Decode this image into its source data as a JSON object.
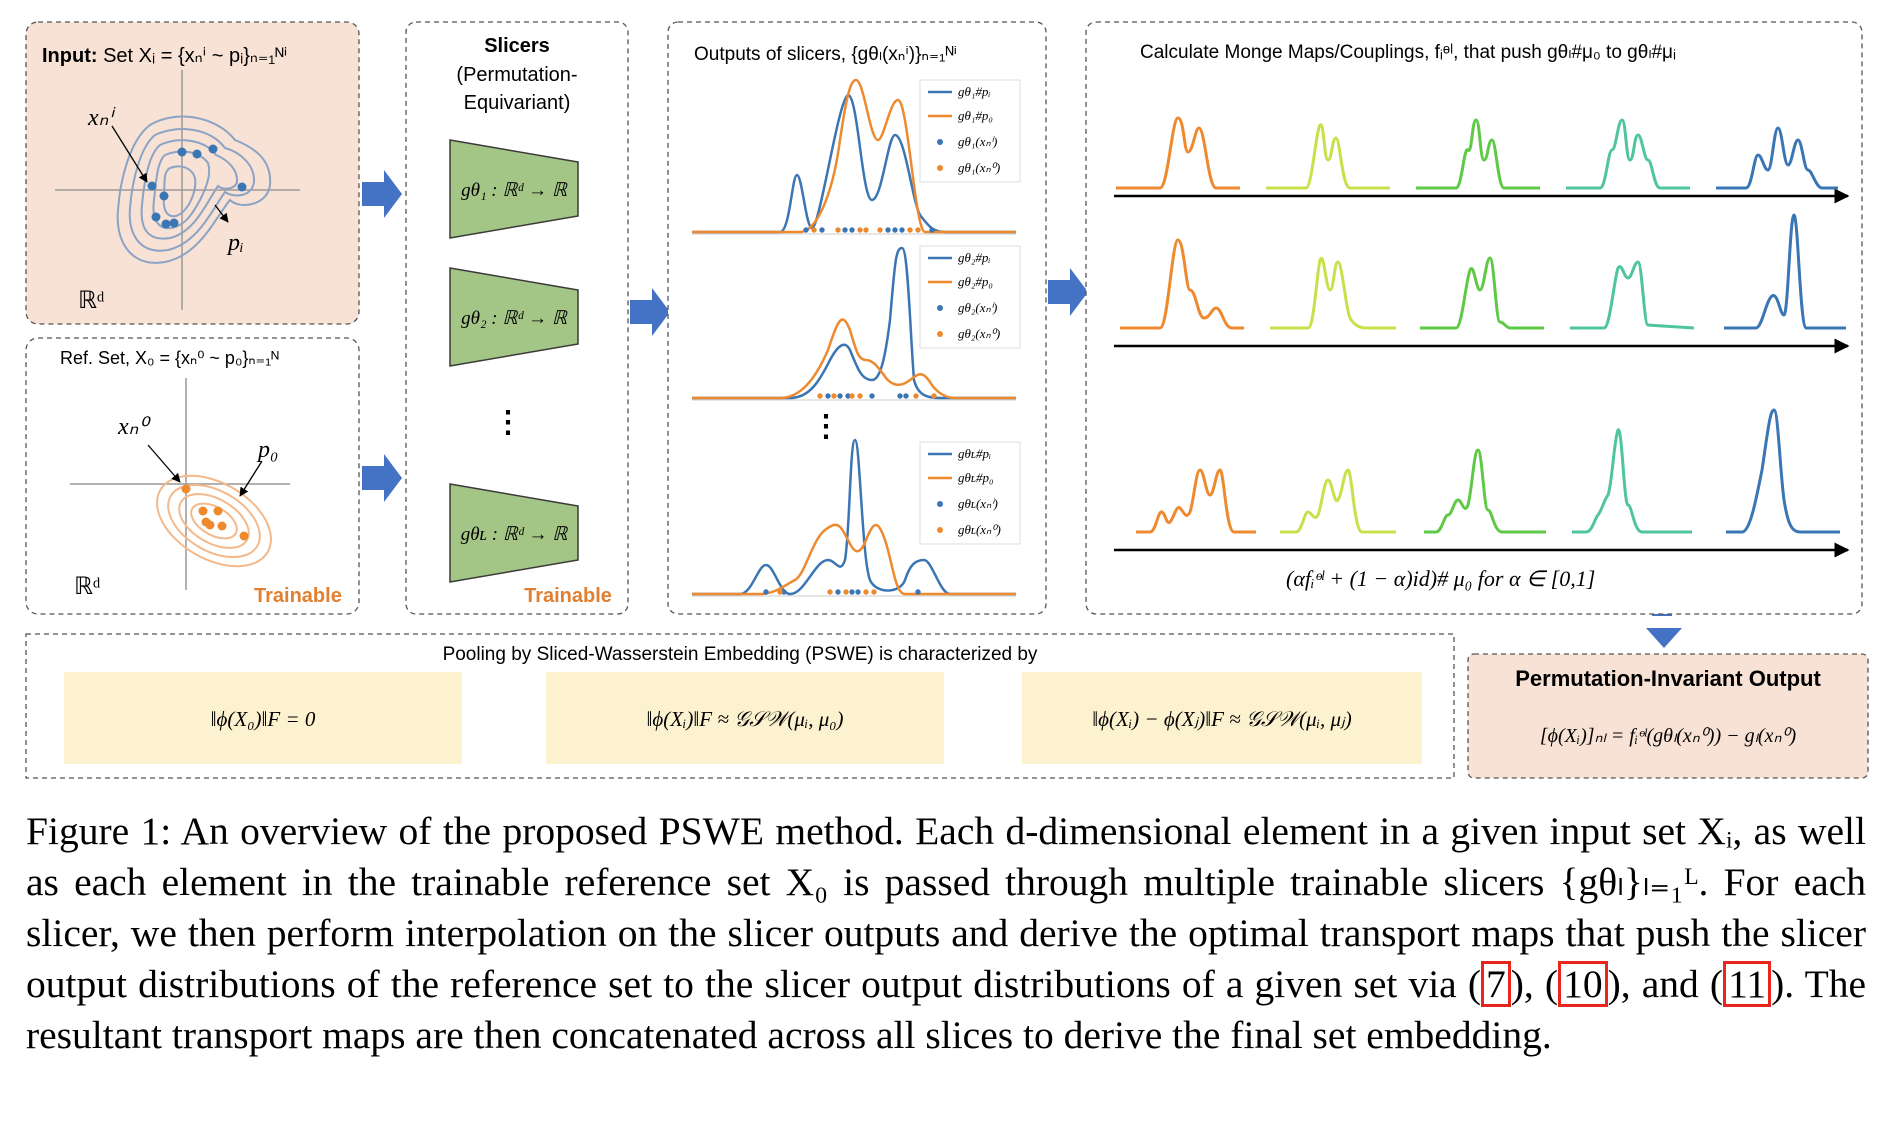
{
  "panels": {
    "input": {
      "title_bold": "Input:",
      "title_rest": " Set Xᵢ = {xₙⁱ ~ pᵢ}ₙ₌₁ᴺⁱ",
      "point_label": "xₙⁱ",
      "dist_label": "pᵢ",
      "space_label": "ℝᵈ"
    },
    "reference": {
      "title": "Ref. Set, X₀ = {xₙ⁰ ~ p₀}ₙ₌₁ᴺ",
      "point_label": "xₙ⁰",
      "dist_label": "p₀",
      "space_label": "ℝᵈ",
      "trainable": "Trainable"
    },
    "slicers": {
      "title": "Slicers",
      "subtitle1": "(Permutation-",
      "subtitle2": "Equivariant)",
      "slicer1": "gθ₁ : ℝᵈ → ℝ",
      "slicer2": "gθ₂ : ℝᵈ → ℝ",
      "slicerL": "gθʟ : ℝᵈ → ℝ",
      "dots": "⋮",
      "trainable": "Trainable"
    },
    "outputs": {
      "title": "Outputs of slicers, {gθₗ(xₙⁱ)}ₙ₌₁ᴺⁱ",
      "dots": "⋮",
      "legend1": [
        "gθ₁#pᵢ",
        "gθ₁#p₀",
        "gθ₁(xₙⁱ)",
        "gθ₁(xₙ⁰)"
      ],
      "legend2": [
        "gθ₂#pᵢ",
        "gθ₂#p₀",
        "gθ₂(xₙⁱ)",
        "gθ₂(xₙ⁰)"
      ],
      "legend3": [
        "gθʟ#pᵢ",
        "gθʟ#p₀",
        "gθʟ(xₙⁱ)",
        "gθʟ(xₙ⁰)"
      ]
    },
    "monge": {
      "title": "Calculate Monge Maps/Couplings, fᵢᶱˡ,  that push gθₗ#μ₀ to gθₗ#μᵢ",
      "formula": "(αfᵢᶱˡ + (1 − α)id)# μ₀   for α ∈ [0,1]"
    },
    "pooling": {
      "title": "Pooling by Sliced-Wasserstein Embedding (PSWE) is characterized by",
      "eq1": "‖ϕ(X₀)‖F = 0",
      "eq2": "‖ϕ(Xᵢ)‖F ≈ 𝒢𝒮𝒲(μᵢ, μ₀)",
      "eq3": "‖ϕ(Xᵢ) − ϕ(Xⱼ)‖F ≈ 𝒢𝒮𝒲(μᵢ, μⱼ)"
    },
    "output": {
      "title": "Permutation-Invariant Output",
      "eq": "[ϕ(Xᵢ)]ₙₗ = fᵢᶱˡ(gθₗ(xₙ⁰)) − gₗ(xₙ⁰)"
    }
  },
  "caption": {
    "p1": "Figure 1: An overview of the proposed PSWE method. Each d-dimensional element in a given input set Xᵢ, as well as each element in the trainable reference set X₀ is passed through multiple trainable slicers {gθₗ}ₗ₌₁ᴸ. For each slicer, we then perform interpolation on the slicer outputs and derive the optimal transport maps that push the slicer output distributions of the reference set to the slicer output distributions of a given set via (",
    "ref1": "7",
    "p2": "), (",
    "ref2": "10",
    "p3": "), and (",
    "ref3": "11",
    "p4": "). The resultant transport maps are then concatenated across all slices to derive the final set embedding."
  },
  "colors": {
    "blue": "#3a75b4",
    "orange": "#ed8a2f",
    "green_box": "#a3c585",
    "peach": "#f8e2d5",
    "yellow_box": "#fdf2cf",
    "arrow": "#4472c4",
    "trainable": "#e08030"
  }
}
